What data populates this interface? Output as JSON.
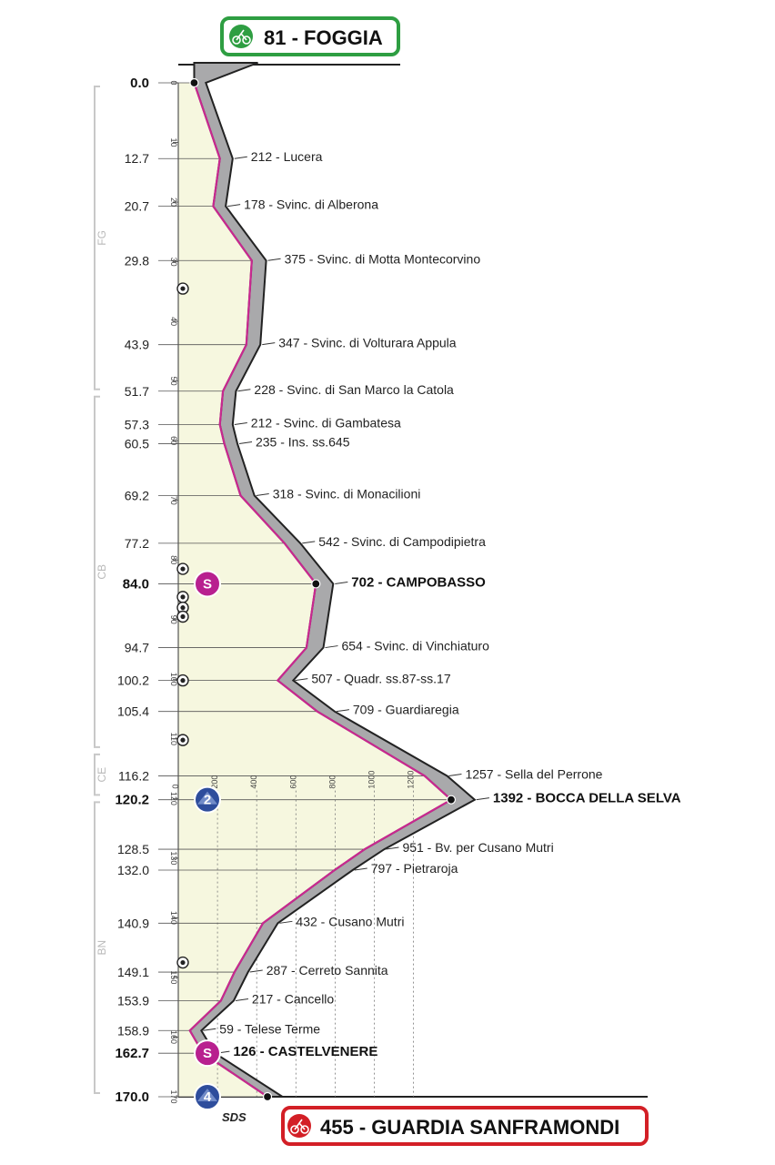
{
  "chart_data": {
    "type": "line",
    "start": {
      "altitude": "81",
      "name": "FOGGIA",
      "label": "81 - FOGGIA"
    },
    "finish": {
      "altitude": "455",
      "name": "GUARDIA SANFRAMONDI",
      "label": "455 - GUARDIA SANFRAMONDI"
    },
    "x_axis": "distance_km",
    "km_range": [
      0,
      170
    ],
    "km_ticks": [
      "0",
      "10",
      "20",
      "30",
      "40",
      "50",
      "60",
      "70",
      "80",
      "90",
      "100",
      "110",
      "120",
      "130",
      "140",
      "150",
      "160",
      "170"
    ],
    "altitude_ticks": [
      "0",
      "200",
      "400",
      "600",
      "800",
      "1000",
      "1200"
    ],
    "altitude_range": [
      0,
      1392
    ],
    "regions": [
      {
        "name": "FG",
        "km_from": 0,
        "km_to": 52
      },
      {
        "name": "CB",
        "km_from": 52,
        "km_to": 112
      },
      {
        "name": "CE",
        "km_from": 112,
        "km_to": 120
      },
      {
        "name": "BN",
        "km_from": 120,
        "km_to": 170
      }
    ],
    "points": [
      {
        "km": 0.0,
        "km_label": "0.0",
        "altitude": 81,
        "label": "",
        "bold": true
      },
      {
        "km": 12.7,
        "km_label": "12.7",
        "altitude": 212,
        "label": "212 - Lucera"
      },
      {
        "km": 20.7,
        "km_label": "20.7",
        "altitude": 178,
        "label": "178 - Svinc. di Alberona"
      },
      {
        "km": 29.8,
        "km_label": "29.8",
        "altitude": 375,
        "label": "375 - Svinc. di Motta Montecorvino"
      },
      {
        "km": 43.9,
        "km_label": "43.9",
        "altitude": 347,
        "label": "347 - Svinc. di Volturara Appula"
      },
      {
        "km": 51.7,
        "km_label": "51.7",
        "altitude": 228,
        "label": "228 - Svinc. di San Marco la Catola"
      },
      {
        "km": 57.3,
        "km_label": "57.3",
        "altitude": 212,
        "label": "212 - Svinc. di Gambatesa"
      },
      {
        "km": 60.5,
        "km_label": "60.5",
        "altitude": 235,
        "label": "235 - Ins. ss.645"
      },
      {
        "km": 69.2,
        "km_label": "69.2",
        "altitude": 318,
        "label": "318 - Svinc. di Monacilioni"
      },
      {
        "km": 77.2,
        "km_label": "77.2",
        "altitude": 542,
        "label": "542 - Svinc. di Campodipietra"
      },
      {
        "km": 84.0,
        "km_label": "84.0",
        "altitude": 702,
        "label": "702 - CAMPOBASSO",
        "bold": true
      },
      {
        "km": 94.7,
        "km_label": "94.7",
        "altitude": 654,
        "label": "654 - Svinc. di Vinchiaturo"
      },
      {
        "km": 100.2,
        "km_label": "100.2",
        "altitude": 507,
        "label": "507 - Quadr. ss.87-ss.17"
      },
      {
        "km": 105.4,
        "km_label": "105.4",
        "altitude": 709,
        "label": "709 - Guardiaregia"
      },
      {
        "km": 116.2,
        "km_label": "116.2",
        "altitude": 1257,
        "label": "1257 - Sella del Perrone"
      },
      {
        "km": 120.2,
        "km_label": "120.2",
        "altitude": 1392,
        "label": "1392 - BOCCA DELLA SELVA",
        "bold": true
      },
      {
        "km": 128.5,
        "km_label": "128.5",
        "altitude": 951,
        "label": "951 - Bv. per Cusano Mutri"
      },
      {
        "km": 132.0,
        "km_label": "132.0",
        "altitude": 797,
        "label": "797 - Pietraroja"
      },
      {
        "km": 140.9,
        "km_label": "140.9",
        "altitude": 432,
        "label": "432 - Cusano Mutri"
      },
      {
        "km": 149.1,
        "km_label": "149.1",
        "altitude": 287,
        "label": "287 - Cerreto Sannita"
      },
      {
        "km": 153.9,
        "km_label": "153.9",
        "altitude": 217,
        "label": "217 - Cancello"
      },
      {
        "km": 158.9,
        "km_label": "158.9",
        "altitude": 59,
        "label": "59 - Telese Terme"
      },
      {
        "km": 162.7,
        "km_label": "162.7",
        "altitude": 126,
        "label": "126 - CASTELVENERE",
        "bold": true
      },
      {
        "km": 170.0,
        "km_label": "170.0",
        "altitude": 455,
        "label": "",
        "bold": true
      }
    ],
    "sprints": [
      {
        "km": 84.0,
        "symbol": "S"
      },
      {
        "km": 162.7,
        "symbol": "S"
      }
    ],
    "kom": [
      {
        "km": 120.2,
        "category": "2"
      },
      {
        "km": 170.0,
        "category": "4"
      }
    ],
    "bottom_note": "SDS",
    "colors": {
      "profile_fill": "#f6f7df",
      "road_line": "#c8288f",
      "relief": "#a9a9ab",
      "start_box": "#2e9e42",
      "finish_box": "#d31f26",
      "sprint": "#b8208f",
      "kom": "#2e4d9c"
    }
  },
  "icons": {
    "start": "cyclist-icon",
    "finish": "cyclist-icon",
    "markers": "tunnel-icon"
  }
}
